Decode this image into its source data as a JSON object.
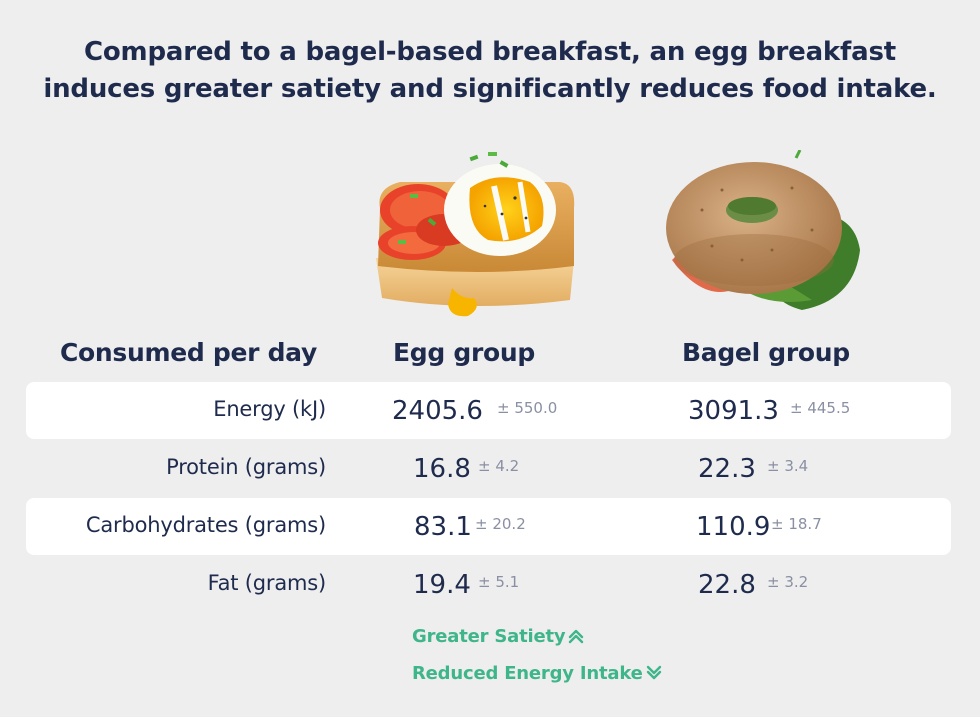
{
  "title": {
    "line1": "Compared to a bagel-based breakfast, an egg breakfast",
    "line2": "induces greater satiety and significantly reduces food intake."
  },
  "chart_data": {
    "type": "table",
    "columns": [
      "Consumed per day",
      "Egg group",
      "Bagel group"
    ],
    "rows": [
      {
        "label": "Energy (kJ)",
        "egg": {
          "mean": "2405.6",
          "sd": "± 550.0"
        },
        "bagel": {
          "mean": "3091.3",
          "sd": "± 445.5"
        }
      },
      {
        "label": "Protein (grams)",
        "egg": {
          "mean": "16.8",
          "sd": "± 4.2"
        },
        "bagel": {
          "mean": "22.3",
          "sd": "± 3.4"
        }
      },
      {
        "label": "Carbohydrates (grams)",
        "egg": {
          "mean": "83.1",
          "sd": "± 20.2"
        },
        "bagel": {
          "mean": "110.9",
          "sd": "± 18.7"
        }
      },
      {
        "label": "Fat (grams)",
        "egg": {
          "mean": "19.4",
          "sd": "± 5.1"
        },
        "bagel": {
          "mean": "22.8",
          "sd": "± 3.2"
        }
      }
    ]
  },
  "notes": {
    "satiety": "Greater Satiety",
    "energy": "Reduced Energy Intake"
  },
  "icons": {
    "food_egg": "egg-toast-icon",
    "food_bagel": "bagel-icon",
    "up": "double-chevron-up-icon",
    "down": "double-chevron-down-icon"
  },
  "colors": {
    "text": "#1f2b4d",
    "muted": "#8a90a3",
    "accent": "#3fb58a",
    "band": "#ffffff",
    "background": "#eeeeef"
  }
}
